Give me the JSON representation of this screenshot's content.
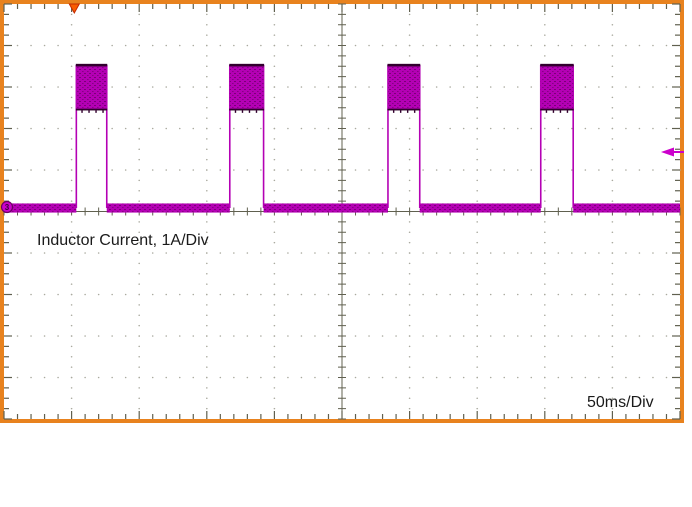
{
  "labels": {
    "trace_label": "Inductor Current, 1A/Div",
    "timebase_label": "50ms/Div"
  },
  "chart_data": {
    "type": "line",
    "subtype": "oscilloscope-pulse-train",
    "title": "Inductor Current, 1A/Div",
    "xlabel": "50ms/Div",
    "ylabel": "Inductor Current, 1A/Div",
    "x_units": "ms",
    "y_units": "A",
    "time_per_div_ms": 50,
    "amps_per_div": 1,
    "divisions": {
      "x": 10,
      "y": 10
    },
    "x_range_ms": [
      0,
      500
    ],
    "zero_amps_div_from_top": 4.916,
    "baseline_amps": 0,
    "noise_band_amps": 0.11,
    "burst_peak_amps": 3.45,
    "burst_valley_amps": 2.37,
    "pulses_ms": [
      {
        "start": 53.5,
        "end": 76
      },
      {
        "start": 167,
        "end": 192
      },
      {
        "start": 284,
        "end": 307.5
      },
      {
        "start": 397,
        "end": 421
      }
    ],
    "period_ms_approx": 114,
    "trigger_time_ms": 52,
    "trigger_level_amps": 1.35,
    "channel_marker": "3",
    "grid": "dotted-graticule-with-center-cross",
    "legend": "none",
    "colors": {
      "trace": "#b400b4",
      "trace_dark": "#32002e",
      "graticule_dot": "#a9a99e",
      "axis_tick": "#60604f",
      "frame": "#e8821e",
      "trigger_marker": "#f85c00",
      "trigger_marker_edge": "#c32a00",
      "channel_marker_fill": "#cc00cc",
      "channel_marker_edge": "#6a0060",
      "background": "#ffffff",
      "text": "#1a1a1a"
    }
  }
}
